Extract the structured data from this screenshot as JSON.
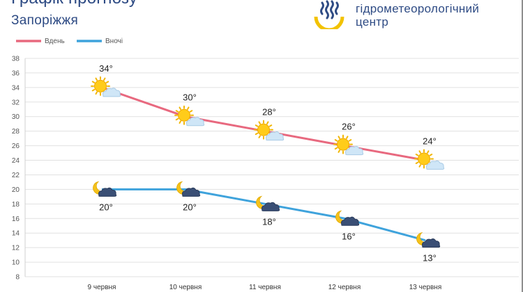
{
  "header": {
    "title": "Графік прогнозу",
    "city": "Запоріжжя"
  },
  "brand": {
    "line1": "гідрометеорологічний",
    "line2": "центр",
    "colors": {
      "text": "#2e4b84",
      "blue": "#2e4b84",
      "yellow": "#f2c200"
    }
  },
  "chart_data": {
    "type": "line",
    "categories": [
      "9 червня",
      "10 червня",
      "11 червня",
      "12 червня",
      "13 червня"
    ],
    "series": [
      {
        "name": "Вдень",
        "values": [
          34,
          30,
          28,
          26,
          24
        ],
        "color": "#e8697f",
        "labels": [
          "34°",
          "30°",
          "28°",
          "26°",
          "24°"
        ],
        "label_position": "above",
        "icon": "sun-cloud-icon"
      },
      {
        "name": "Вночі",
        "values": [
          20,
          20,
          18,
          16,
          13
        ],
        "color": "#3fa3dc",
        "labels": [
          "20°",
          "20°",
          "18°",
          "16°",
          "13°"
        ],
        "label_position": "below",
        "icon": "moon-cloud-icon"
      }
    ],
    "ylim": [
      8,
      38
    ],
    "yticks": [
      8,
      10,
      12,
      14,
      16,
      18,
      20,
      22,
      24,
      26,
      28,
      30,
      32,
      34,
      36,
      38
    ],
    "grid": true,
    "legend": "top-left"
  }
}
